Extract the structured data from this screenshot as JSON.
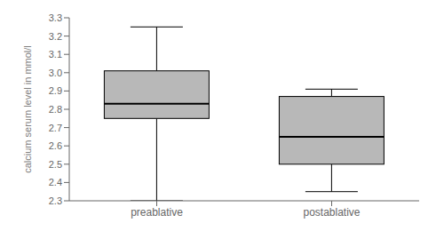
{
  "chart_data": {
    "type": "box",
    "categories": [
      "preablative",
      "postablative"
    ],
    "box_stats": [
      {
        "whislo": 2.3,
        "q1": 2.75,
        "med": 2.83,
        "q3": 3.01,
        "whishi": 3.25
      },
      {
        "whislo": 2.35,
        "q1": 2.5,
        "med": 2.65,
        "q3": 2.87,
        "whishi": 2.91
      }
    ],
    "ylabel": "calcium serum level in mmol/l",
    "ylim": [
      2.3,
      3.3
    ],
    "yticks": [
      2.3,
      2.4,
      2.5,
      2.6,
      2.7,
      2.8,
      2.9,
      {
        "value": 3,
        "label": "3.0"
      },
      3.1,
      3.2,
      3.3
    ],
    "color": "#b8b8b8",
    "grid": false
  }
}
